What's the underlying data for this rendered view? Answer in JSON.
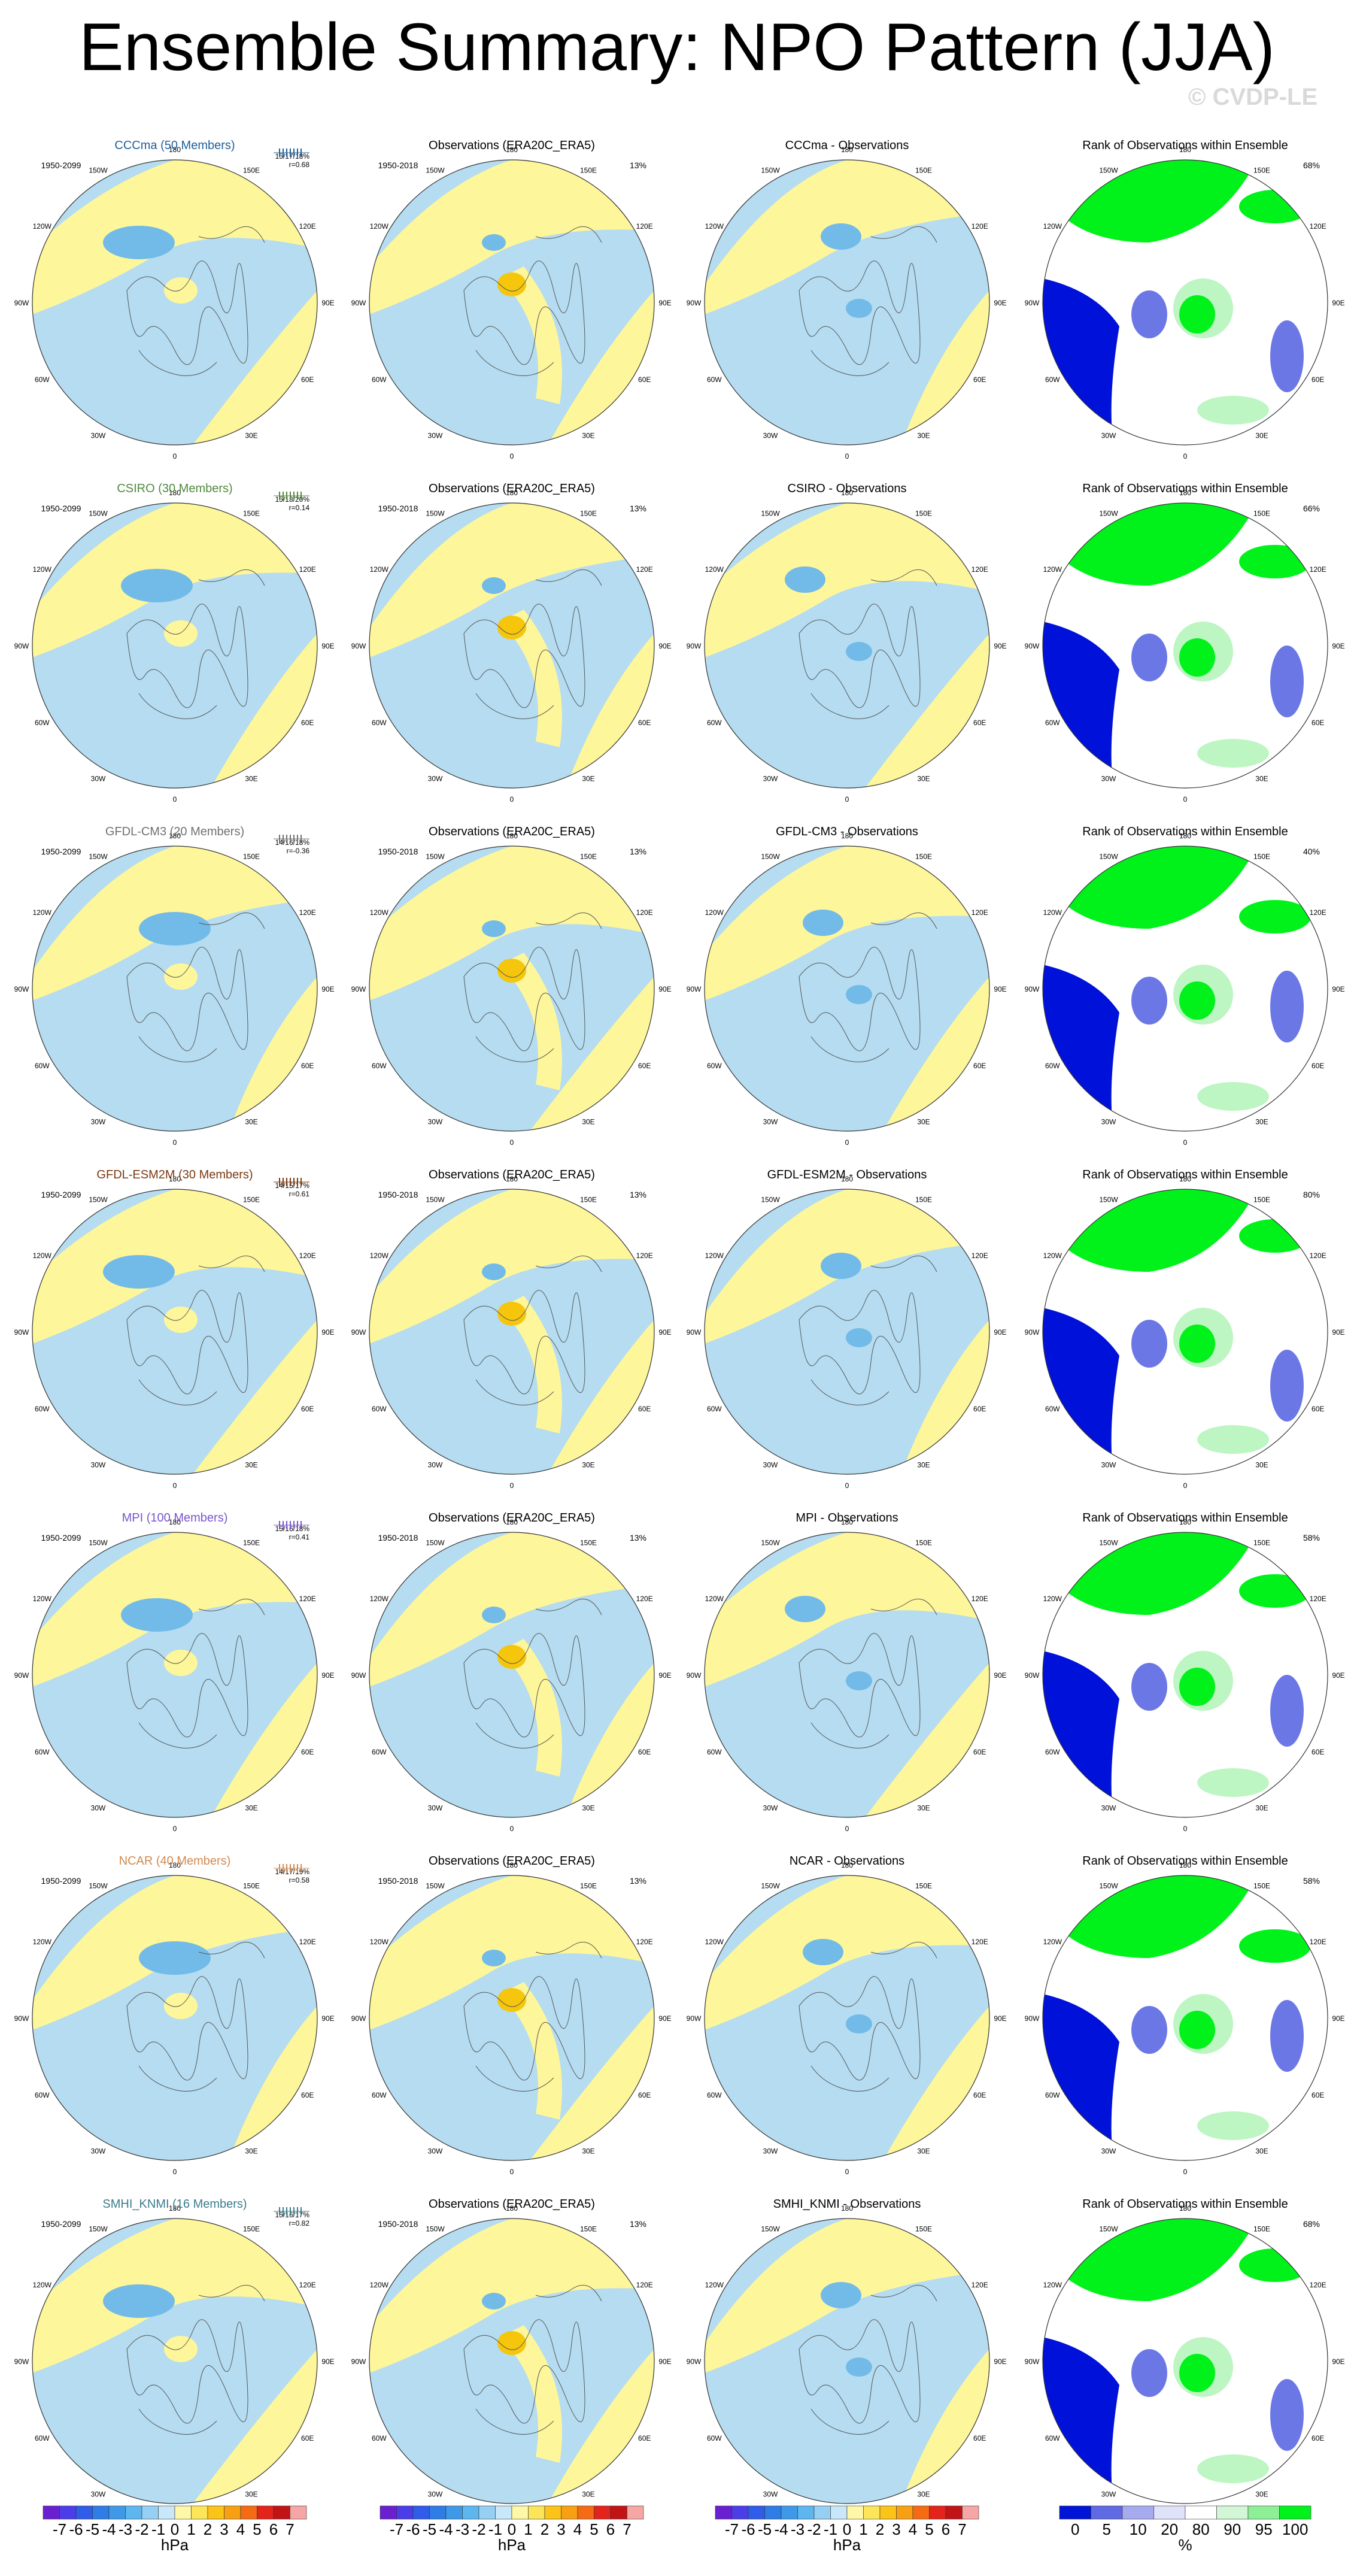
{
  "title": "Ensemble Summary: NPO Pattern (JJA)",
  "watermark": "© CVDP-LE",
  "colors": {
    "ocean": "#b5dcf0",
    "negative_strong": "#72bbe8",
    "positive": "#fef69a",
    "positive_strong": "#f5c60c",
    "rank_green": "#00f21a",
    "rank_light_green": "#bdf5c3",
    "rank_blue": "#0012d9",
    "rank_light_blue": "#6c77e6",
    "coast": "#555555"
  },
  "obs_title": "Observations (ERA20C_ERA5)",
  "rank_title": "Rank of Observations within Ensemble",
  "model_period": "1950-2099",
  "obs_period": "1950-2018",
  "obs_pct": "13%",
  "lon_labels": [
    "180",
    "150E",
    "120E",
    "90E",
    "60E",
    "30E",
    "0",
    "30W",
    "60W",
    "90W",
    "120W",
    "150W"
  ],
  "rows": [
    {
      "model": "CCCma (50 Members)",
      "color": "#1f5f9a",
      "stats": "15/17/18%",
      "r": "r=0.68",
      "diff_title": "CCCma - Observations",
      "rank_pct": "68%"
    },
    {
      "model": "CSIRO (30 Members)",
      "color": "#4f8a3c",
      "stats": "15/18/20%",
      "r": "r=0.14",
      "diff_title": "CSIRO - Observations",
      "rank_pct": "66%"
    },
    {
      "model": "GFDL-CM3 (20 Members)",
      "color": "#707070",
      "stats": "14/16/18%",
      "r": "r=-0.36",
      "diff_title": "GFDL-CM3 - Observations",
      "rank_pct": "40%"
    },
    {
      "model": "GFDL-ESM2M (30 Members)",
      "color": "#7a3a10",
      "stats": "14/15/17%",
      "r": "r=0.61",
      "diff_title": "GFDL-ESM2M - Observations",
      "rank_pct": "80%"
    },
    {
      "model": "MPI (100 Members)",
      "color": "#7a55cc",
      "stats": "15/16/18%",
      "r": "r=0.41",
      "diff_title": "MPI - Observations",
      "rank_pct": "58%"
    },
    {
      "model": "NCAR (40 Members)",
      "color": "#d28a50",
      "stats": "14/17/19%",
      "r": "r=0.58",
      "diff_title": "NCAR - Observations",
      "rank_pct": "58%"
    },
    {
      "model": "SMHI_KNMI (16 Members)",
      "color": "#3b7c8c",
      "stats": "15/16/17%",
      "r": "r=0.82",
      "diff_title": "SMHI_KNMI - Observations",
      "rank_pct": "68%"
    }
  ],
  "colorbars": {
    "hpa": {
      "labels": [
        "-7",
        "-6",
        "-5",
        "-4",
        "-3",
        "-2",
        "-1",
        "0",
        "1",
        "2",
        "3",
        "4",
        "5",
        "6",
        "7"
      ],
      "colors": [
        "#6a1fd0",
        "#4b3ee8",
        "#2f5ce8",
        "#2e7ce6",
        "#3e9ae8",
        "#5db6ee",
        "#95d0f3",
        "#c8e7f8",
        "#fff7a8",
        "#fde55a",
        "#fcc417",
        "#f9a012",
        "#f46b13",
        "#e4231a",
        "#c21416",
        "#f7a6a6"
      ],
      "unit": "hPa"
    },
    "rank": {
      "labels": [
        "0",
        "5",
        "10",
        "20",
        "80",
        "90",
        "95",
        "100"
      ],
      "colors": [
        "#0014d8",
        "#5f6ae4",
        "#a6abf0",
        "#e0e2f9",
        "#ffffff",
        "#d3f6d7",
        "#8ef096",
        "#00f21a"
      ],
      "unit": "%"
    }
  }
}
